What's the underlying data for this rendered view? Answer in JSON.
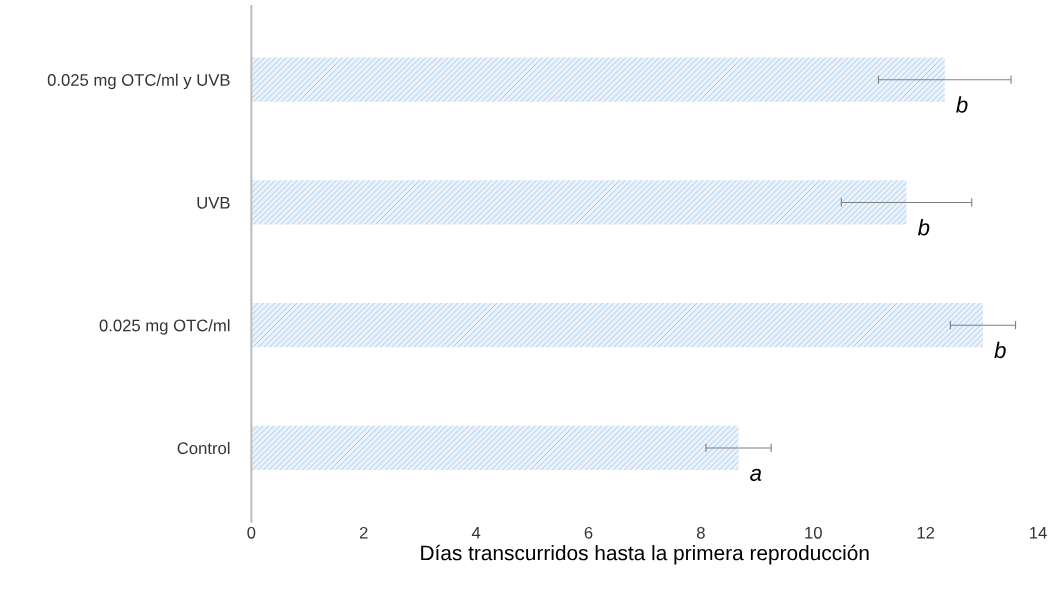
{
  "chart_data": {
    "type": "bar",
    "orientation": "horizontal",
    "xlabel": "Días transcurridos hasta la primera reproducción",
    "categories": [
      "0.025 mg OTC/ml y UVB",
      "UVB",
      "0.025 mg OTC/ml",
      "Control"
    ],
    "values": [
      12.34,
      11.66,
      13.02,
      8.67
    ],
    "errors": [
      1.18,
      1.16,
      0.58,
      0.58
    ],
    "color": "#9dc3e6",
    "xlim": [
      0,
      14
    ],
    "xticks": [
      0,
      2,
      4,
      6,
      8,
      10,
      12,
      14
    ],
    "grid": false,
    "annotations": [
      {
        "text": "b",
        "x": 12.34,
        "y": "0.025 mg OTC/ml y UVB"
      },
      {
        "text": "b",
        "x": 11.66,
        "y": "UVB"
      },
      {
        "text": "b",
        "x": 13.02,
        "y": "0.025 mg OTC/ml"
      },
      {
        "text": "a",
        "x": 8.67,
        "y": "Control"
      }
    ]
  }
}
